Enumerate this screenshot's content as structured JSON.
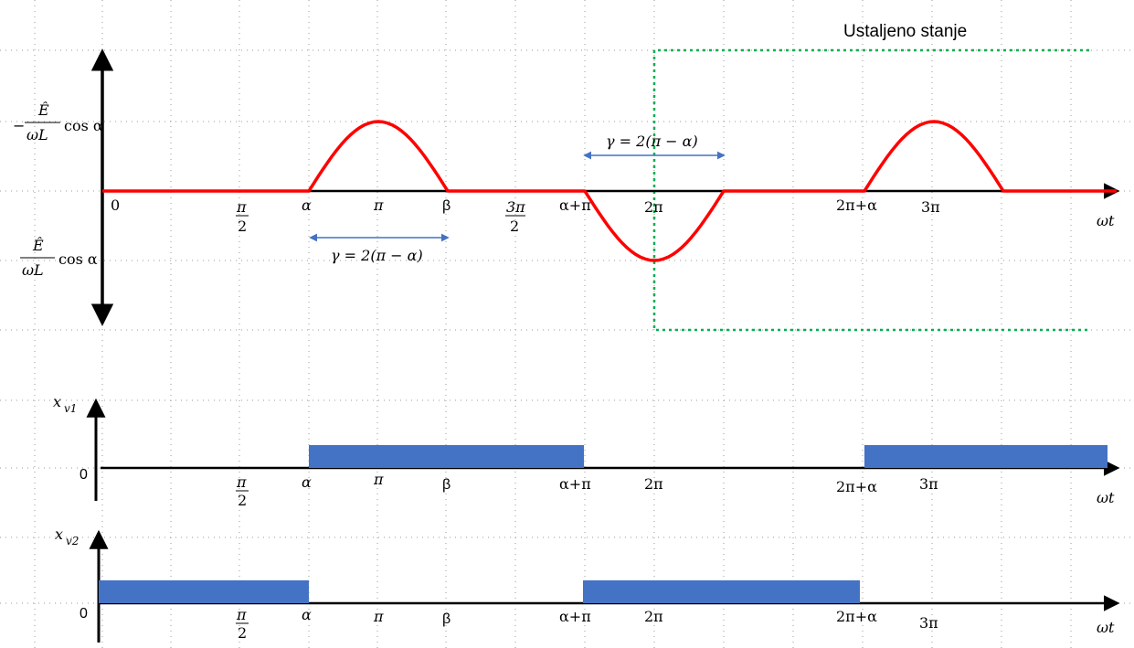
{
  "title": "Ustaljeno stanje",
  "colors": {
    "current": "#ff0000",
    "pulse": "#4472c4",
    "region": "#00b050",
    "gamma_arrow": "#4472c4",
    "grid": "#999999"
  },
  "top": {
    "y_pos_label_num": "Ê",
    "y_pos_label_den": "ωL",
    "y_pos_label_prefix": "−",
    "y_pos_label_suffix": "cos α",
    "y_neg_label_num": "Ê",
    "y_neg_label_den": "ωL",
    "y_neg_label_suffix": "cos α",
    "x_axis_label": "ωt",
    "ticks": {
      "zero": "0",
      "half_pi_num": "π",
      "half_pi_den": "2",
      "alpha": "α",
      "pi": "π",
      "beta": "β",
      "three_half_pi_num": "3π",
      "three_half_pi_den": "2",
      "alpha_plus_pi": "α+π",
      "two_pi": "2π",
      "two_pi_plus_alpha": "2π+α",
      "three_pi": "3π"
    },
    "gamma_label_1": "γ = 2(π − α)",
    "gamma_label_2": "γ = 2(π − α)"
  },
  "xv1": {
    "y_label_main": "x",
    "y_label_sub": "v1",
    "zero": "0",
    "x_axis_label": "ωt",
    "ticks": {
      "half_pi_num": "π",
      "half_pi_den": "2",
      "alpha": "α",
      "pi": "π",
      "beta": "β",
      "alpha_plus_pi": "α+π",
      "two_pi": "2π",
      "two_pi_plus_alpha": "2π+α",
      "three_pi": "3π"
    }
  },
  "xv2": {
    "y_label_main": "x",
    "y_label_sub": "v2",
    "zero": "0",
    "x_axis_label": "ωt",
    "ticks": {
      "half_pi_num": "π",
      "half_pi_den": "2",
      "alpha": "α",
      "pi": "π",
      "beta": "β",
      "alpha_plus_pi": "α+π",
      "two_pi": "2π",
      "two_pi_plus_alpha": "2π+α",
      "three_pi": "3π"
    }
  }
}
